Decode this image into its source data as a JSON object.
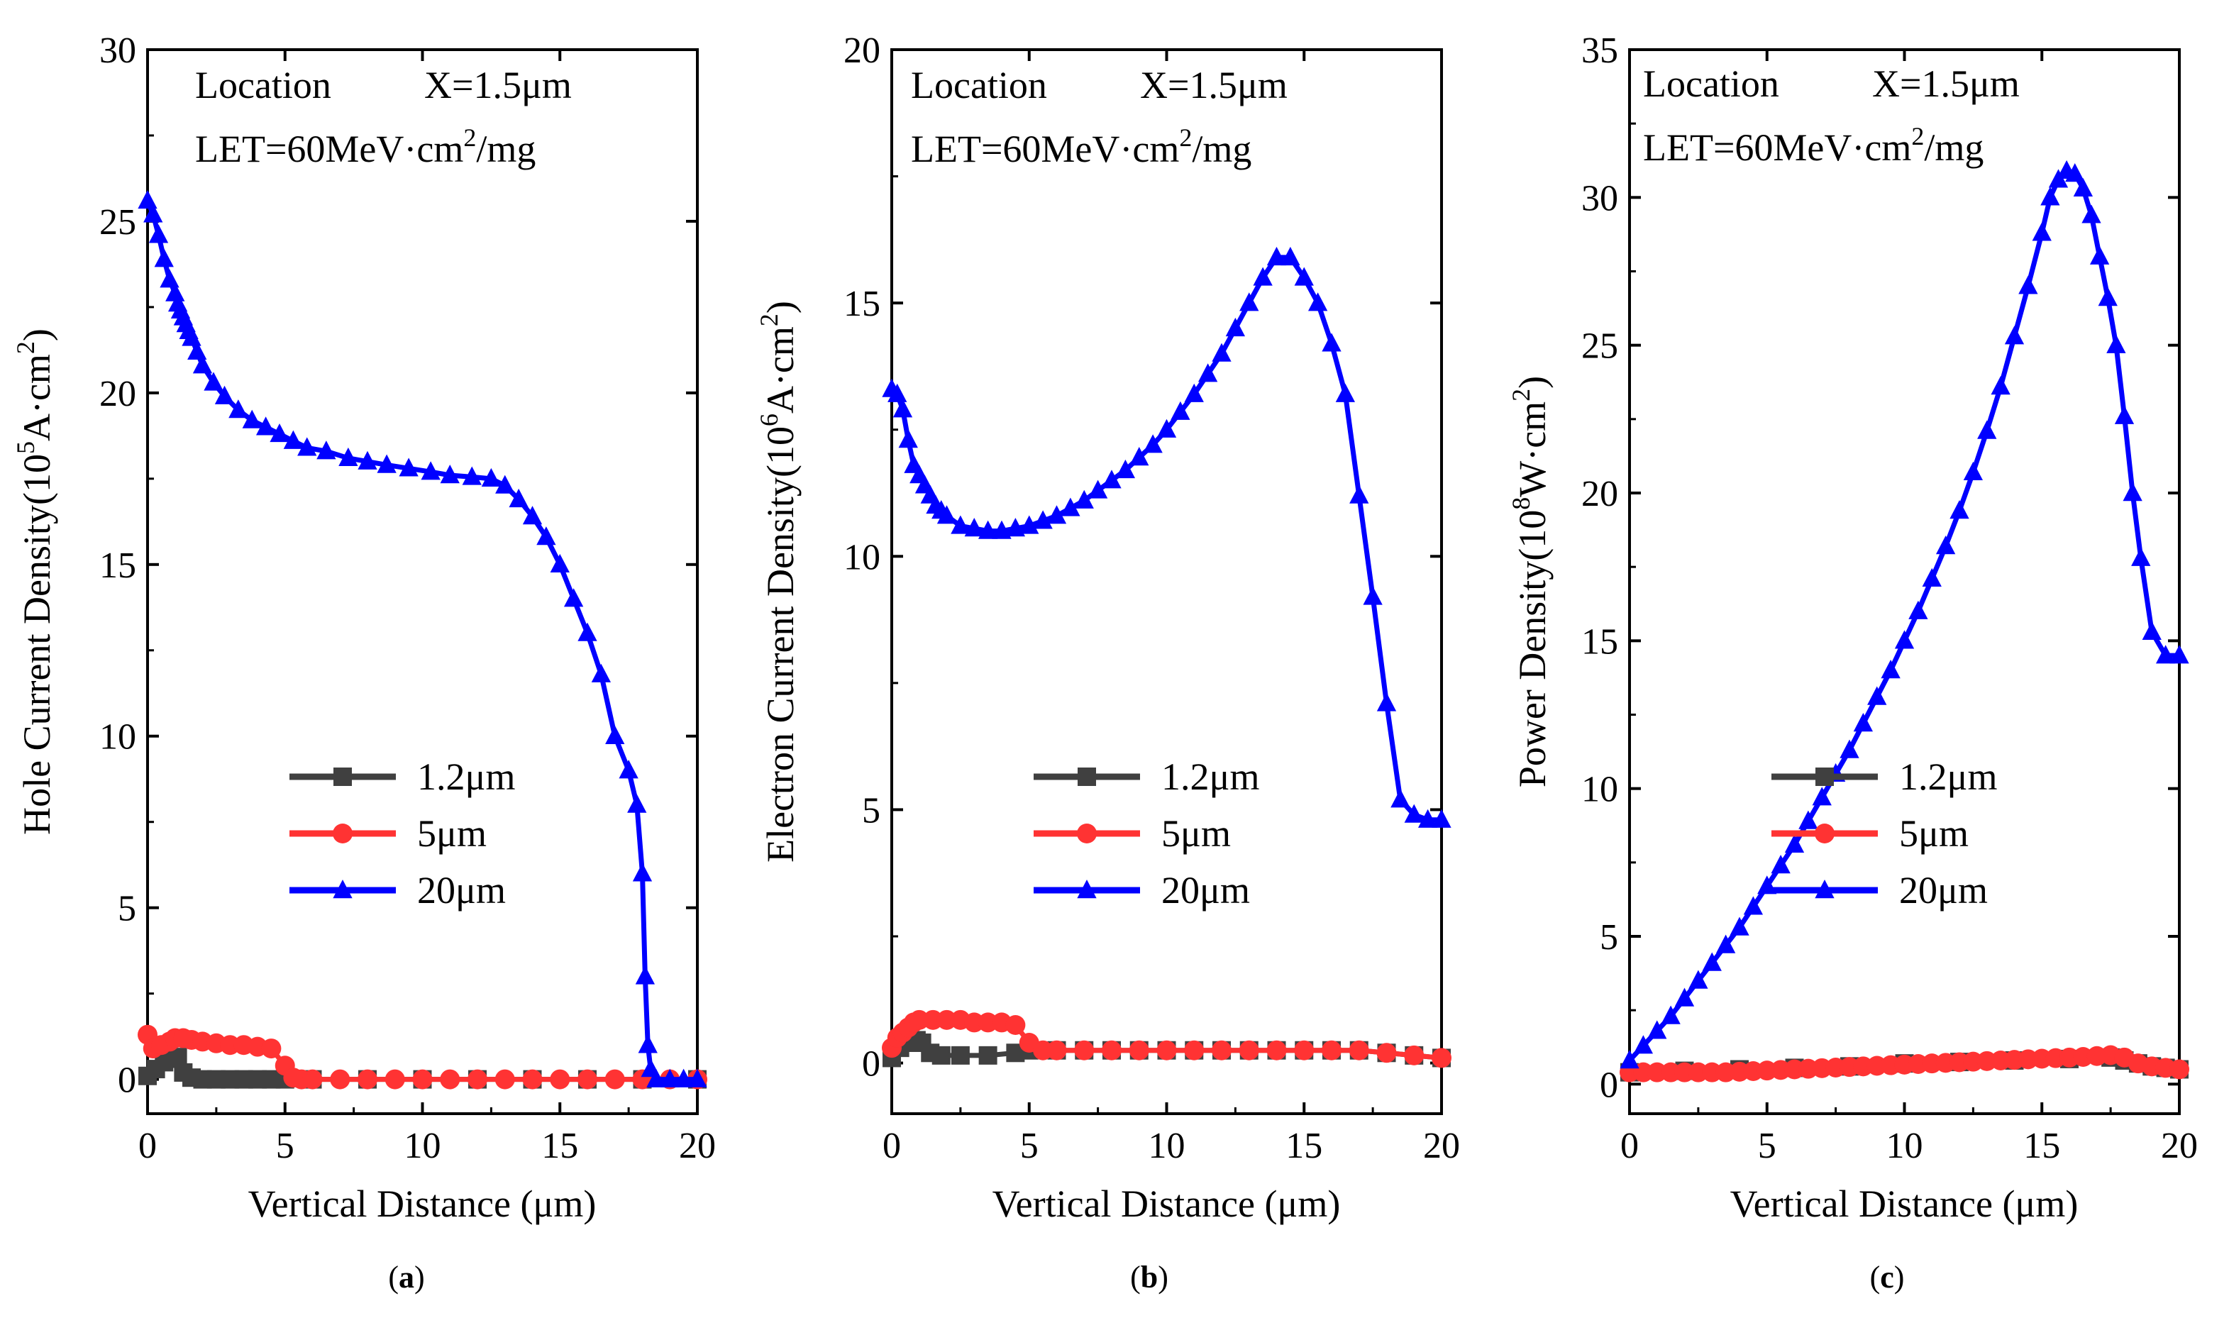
{
  "figure": {
    "panels": [
      {
        "id": "a",
        "caption_letter": "a",
        "annotation": {
          "location_label": "Location",
          "location_value": "X=1.5μm",
          "let_prefix": "LET=60MeV·cm",
          "let_sup": "2",
          "let_suffix": "/mg"
        },
        "ylabel_main": "Hole Current Density(10",
        "ylabel_sup1": "5",
        "ylabel_mid": "A·cm",
        "ylabel_sup2": "2",
        "ylabel_end": ")"
      },
      {
        "id": "b",
        "caption_letter": "b",
        "annotation": {
          "location_label": "Location",
          "location_value": "X=1.5μm",
          "let_prefix": "LET=60MeV·cm",
          "let_sup": "2",
          "let_suffix": "/mg"
        },
        "ylabel_main": "Electron Current Density(10",
        "ylabel_sup1": "6",
        "ylabel_mid": "A·cm",
        "ylabel_sup2": "2",
        "ylabel_end": ")"
      },
      {
        "id": "c",
        "caption_letter": "c",
        "annotation": {
          "location_label": "Location",
          "location_value": "X=1.5μm",
          "let_prefix": "LET=60MeV·cm",
          "let_sup": "2",
          "let_suffix": "/mg"
        },
        "ylabel_main": "Power Density(10",
        "ylabel_sup1": "8",
        "ylabel_mid": "W·cm",
        "ylabel_sup2": "2",
        "ylabel_end": ")"
      }
    ]
  },
  "colors": {
    "s12": "#404040",
    "s5": "#ff3333",
    "s20": "#0000ff",
    "axis": "#000000"
  },
  "chart_data": [
    {
      "type": "line",
      "title": "",
      "xlabel": "Vertical Distance (μm)",
      "ylabel": "Hole Current Density(10^5A·cm^2)",
      "xlim": [
        0,
        20
      ],
      "ylim": [
        -1,
        30
      ],
      "xticks": [
        0,
        5,
        10,
        15,
        20
      ],
      "yticks": [
        0,
        5,
        10,
        15,
        20,
        25,
        30
      ],
      "legend_position": "center-right",
      "series": [
        {
          "name": "1.2μm",
          "marker": "square",
          "color": "#404040",
          "x": [
            0,
            0.3,
            0.6,
            0.9,
            1.1,
            1.3,
            1.6,
            2.0,
            2.5,
            3.0,
            3.5,
            4.0,
            4.5,
            5.0,
            6,
            8,
            10,
            12,
            14,
            16,
            18,
            20
          ],
          "y": [
            0.1,
            0.3,
            0.5,
            0.6,
            0.65,
            0.2,
            0.05,
            0,
            0,
            0,
            0,
            0,
            0,
            0,
            0,
            0,
            0,
            0,
            0,
            0,
            0,
            0
          ]
        },
        {
          "name": "5μm",
          "marker": "circle",
          "color": "#ff3333",
          "x": [
            0,
            0.2,
            0.5,
            0.8,
            1.0,
            1.3,
            1.6,
            2.0,
            2.5,
            3.0,
            3.5,
            4.0,
            4.5,
            5.0,
            5.3,
            5.6,
            6,
            7,
            8,
            9,
            10,
            11,
            12,
            13,
            14,
            15,
            16,
            17,
            18,
            19,
            20
          ],
          "y": [
            1.3,
            0.9,
            1.0,
            1.1,
            1.2,
            1.2,
            1.15,
            1.1,
            1.05,
            1.0,
            1.0,
            0.95,
            0.9,
            0.4,
            0.05,
            0,
            0,
            0,
            0,
            0,
            0,
            0,
            0,
            0,
            0,
            0,
            0,
            0,
            0,
            0,
            0
          ]
        },
        {
          "name": "20μm",
          "marker": "triangle",
          "color": "#0000ff",
          "x": [
            0,
            0.2,
            0.4,
            0.6,
            0.8,
            1.0,
            1.1,
            1.2,
            1.3,
            1.4,
            1.5,
            1.6,
            1.8,
            2.0,
            2.4,
            2.8,
            3.3,
            3.8,
            4.3,
            4.8,
            5.3,
            5.8,
            6.5,
            7.3,
            8.0,
            8.7,
            9.5,
            10.3,
            11.0,
            11.8,
            12.5,
            13.0,
            13.5,
            14.0,
            14.5,
            15.0,
            15.5,
            16.0,
            16.5,
            17.0,
            17.5,
            17.8,
            18.0,
            18.1,
            18.2,
            18.3,
            18.5,
            19.0,
            19.5,
            20.0
          ],
          "y": [
            25.6,
            25.2,
            24.6,
            23.9,
            23.3,
            22.9,
            22.6,
            22.4,
            22.2,
            22.0,
            21.8,
            21.6,
            21.2,
            20.8,
            20.3,
            19.9,
            19.5,
            19.2,
            19.0,
            18.8,
            18.6,
            18.4,
            18.3,
            18.1,
            18.0,
            17.9,
            17.8,
            17.7,
            17.6,
            17.55,
            17.5,
            17.3,
            16.9,
            16.4,
            15.8,
            15.0,
            14.0,
            13.0,
            11.8,
            10.0,
            9.0,
            8.0,
            6.0,
            3.0,
            1.0,
            0.3,
            0,
            0,
            0,
            0
          ]
        }
      ]
    },
    {
      "type": "line",
      "title": "",
      "xlabel": "Vertical Distance (μm)",
      "ylabel": "Electron Current Density(10^6A·cm^2)",
      "xlim": [
        0,
        20
      ],
      "ylim": [
        -1,
        20
      ],
      "xticks": [
        0,
        5,
        10,
        15,
        20
      ],
      "yticks": [
        0,
        5,
        10,
        15,
        20
      ],
      "legend_position": "center-right",
      "series": [
        {
          "name": "1.2μm",
          "marker": "square",
          "color": "#404040",
          "x": [
            0,
            0.3,
            0.6,
            0.9,
            1.1,
            1.4,
            1.8,
            2.5,
            3.5,
            4.5,
            5,
            6,
            7,
            8,
            9,
            10,
            11,
            12,
            13,
            14,
            15,
            16,
            17,
            18,
            19,
            20
          ],
          "y": [
            0.1,
            0.3,
            0.4,
            0.45,
            0.4,
            0.2,
            0.15,
            0.15,
            0.15,
            0.2,
            0.25,
            0.25,
            0.25,
            0.25,
            0.25,
            0.25,
            0.25,
            0.25,
            0.25,
            0.25,
            0.25,
            0.25,
            0.25,
            0.2,
            0.15,
            0.1
          ]
        },
        {
          "name": "5μm",
          "marker": "circle",
          "color": "#ff3333",
          "x": [
            0,
            0.2,
            0.4,
            0.6,
            0.8,
            1.0,
            1.5,
            2.0,
            2.5,
            3.0,
            3.5,
            4.0,
            4.5,
            5.0,
            5.5,
            6,
            7,
            8,
            9,
            10,
            11,
            12,
            13,
            14,
            15,
            16,
            17,
            18,
            19,
            20
          ],
          "y": [
            0.3,
            0.5,
            0.6,
            0.7,
            0.8,
            0.85,
            0.85,
            0.85,
            0.85,
            0.8,
            0.8,
            0.8,
            0.75,
            0.4,
            0.25,
            0.25,
            0.25,
            0.25,
            0.25,
            0.25,
            0.25,
            0.25,
            0.25,
            0.25,
            0.25,
            0.25,
            0.25,
            0.2,
            0.15,
            0.1
          ]
        },
        {
          "name": "20μm",
          "marker": "triangle",
          "color": "#0000ff",
          "x": [
            0,
            0.2,
            0.4,
            0.6,
            0.8,
            1.0,
            1.2,
            1.4,
            1.6,
            1.8,
            2.0,
            2.5,
            3.0,
            3.5,
            4.0,
            4.5,
            5.0,
            5.5,
            6.0,
            6.5,
            7.0,
            7.5,
            8.0,
            8.5,
            9.0,
            9.5,
            10.0,
            10.5,
            11.0,
            11.5,
            12.0,
            12.5,
            13.0,
            13.5,
            14.0,
            14.5,
            15.0,
            15.5,
            16.0,
            16.5,
            17.0,
            17.5,
            18.0,
            18.5,
            19.0,
            19.5,
            20.0
          ],
          "y": [
            13.3,
            13.2,
            12.9,
            12.3,
            11.8,
            11.6,
            11.4,
            11.2,
            11.0,
            10.9,
            10.8,
            10.6,
            10.55,
            10.5,
            10.5,
            10.55,
            10.6,
            10.7,
            10.8,
            10.95,
            11.1,
            11.3,
            11.5,
            11.7,
            11.95,
            12.2,
            12.5,
            12.85,
            13.2,
            13.6,
            14.0,
            14.5,
            15.0,
            15.5,
            15.9,
            15.9,
            15.5,
            15.0,
            14.2,
            13.2,
            11.2,
            9.2,
            7.1,
            5.2,
            4.9,
            4.8,
            4.8
          ]
        }
      ]
    },
    {
      "type": "line",
      "title": "",
      "xlabel": "Vertical Distance (μm)",
      "ylabel": "Power Density(10^8W·cm^2)",
      "xlim": [
        0,
        20
      ],
      "ylim": [
        -1,
        35
      ],
      "xticks": [
        0,
        5,
        10,
        15,
        20
      ],
      "yticks": [
        0,
        5,
        10,
        15,
        20,
        25,
        30,
        35
      ],
      "legend_position": "center-right",
      "series": [
        {
          "name": "1.2μm",
          "marker": "square",
          "color": "#404040",
          "x": [
            0,
            2,
            4,
            6,
            8,
            10,
            12,
            14,
            16,
            17.5,
            18,
            18.5,
            19,
            19.5,
            20
          ],
          "y": [
            0.4,
            0.45,
            0.5,
            0.55,
            0.6,
            0.7,
            0.75,
            0.8,
            0.85,
            0.9,
            0.8,
            0.7,
            0.6,
            0.55,
            0.5
          ]
        },
        {
          "name": "5μm",
          "marker": "circle",
          "color": "#ff3333",
          "x": [
            0,
            0.5,
            1,
            1.5,
            2,
            2.5,
            3,
            3.5,
            4,
            4.5,
            5,
            5.5,
            6,
            6.5,
            7,
            7.5,
            8,
            8.5,
            9,
            9.5,
            10,
            10.5,
            11,
            11.5,
            12,
            12.5,
            13,
            13.5,
            14,
            14.5,
            15,
            15.5,
            16,
            16.5,
            17,
            17.5,
            18,
            18.5,
            19,
            19.5,
            20
          ],
          "y": [
            0.4,
            0.4,
            0.4,
            0.4,
            0.4,
            0.4,
            0.4,
            0.4,
            0.42,
            0.44,
            0.46,
            0.48,
            0.5,
            0.52,
            0.54,
            0.56,
            0.58,
            0.6,
            0.62,
            0.64,
            0.66,
            0.68,
            0.7,
            0.72,
            0.74,
            0.76,
            0.78,
            0.8,
            0.82,
            0.84,
            0.86,
            0.88,
            0.9,
            0.92,
            0.95,
            0.98,
            0.9,
            0.7,
            0.6,
            0.55,
            0.5
          ]
        },
        {
          "name": "20μm",
          "marker": "triangle",
          "color": "#0000ff",
          "x": [
            0,
            0.5,
            1,
            1.5,
            2,
            2.5,
            3,
            3.5,
            4,
            4.5,
            5,
            5.5,
            6,
            6.5,
            7,
            7.5,
            8,
            8.5,
            9,
            9.5,
            10,
            10.5,
            11,
            11.5,
            12,
            12.5,
            13,
            13.5,
            14,
            14.5,
            15,
            15.3,
            15.6,
            15.9,
            16.2,
            16.5,
            16.8,
            17.1,
            17.4,
            17.7,
            18,
            18.3,
            18.6,
            19,
            19.5,
            20
          ],
          "y": [
            0.8,
            1.3,
            1.8,
            2.3,
            2.9,
            3.5,
            4.1,
            4.7,
            5.3,
            6.0,
            6.7,
            7.4,
            8.1,
            8.9,
            9.7,
            10.5,
            11.3,
            12.2,
            13.1,
            14.0,
            15.0,
            16.0,
            17.1,
            18.2,
            19.4,
            20.7,
            22.1,
            23.6,
            25.3,
            27.0,
            28.8,
            30.0,
            30.6,
            30.9,
            30.8,
            30.3,
            29.4,
            28.0,
            26.6,
            25.0,
            22.6,
            20.0,
            17.8,
            15.3,
            14.5,
            14.5
          ]
        }
      ]
    }
  ],
  "legend": {
    "labels": [
      "1.2μm",
      "5μm",
      "20μm"
    ]
  }
}
